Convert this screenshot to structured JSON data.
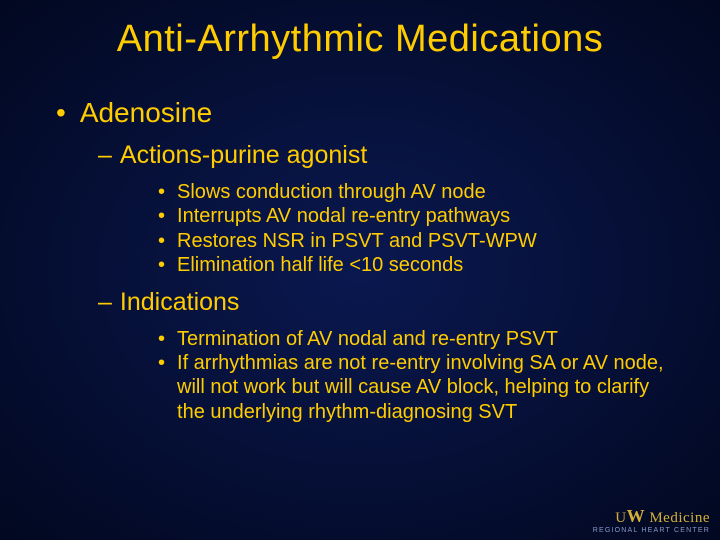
{
  "colors": {
    "background_inner": "#0a1850",
    "background_outer": "#020820",
    "text": "#ffcc00",
    "logo_gold": "#d4af37",
    "logo_sub": "#8a98c8"
  },
  "typography": {
    "title_fontsize": 38,
    "level1_fontsize": 28,
    "level2_fontsize": 25,
    "level3_fontsize": 20,
    "font_family": "Arial"
  },
  "title": "Anti-Arrhythmic Medications",
  "content": {
    "level1": "Adenosine",
    "sections": [
      {
        "heading": "Actions-purine agonist",
        "bullets": [
          "Slows conduction through AV node",
          "Interrupts AV nodal re-entry pathways",
          "Restores NSR in PSVT and PSVT-WPW",
          "Elimination half life <10 seconds"
        ]
      },
      {
        "heading": "Indications",
        "bullets": [
          "Termination of AV nodal and re-entry PSVT",
          "If arrhythmias are not re-entry involving SA or AV node, will not work but will cause AV block, helping to clarify the underlying rhythm-diagnosing SVT"
        ]
      }
    ]
  },
  "logo": {
    "top_prefix": "U",
    "top_w": "W",
    "top_rest": " Medicine",
    "bottom": "REGIONAL HEART CENTER"
  }
}
